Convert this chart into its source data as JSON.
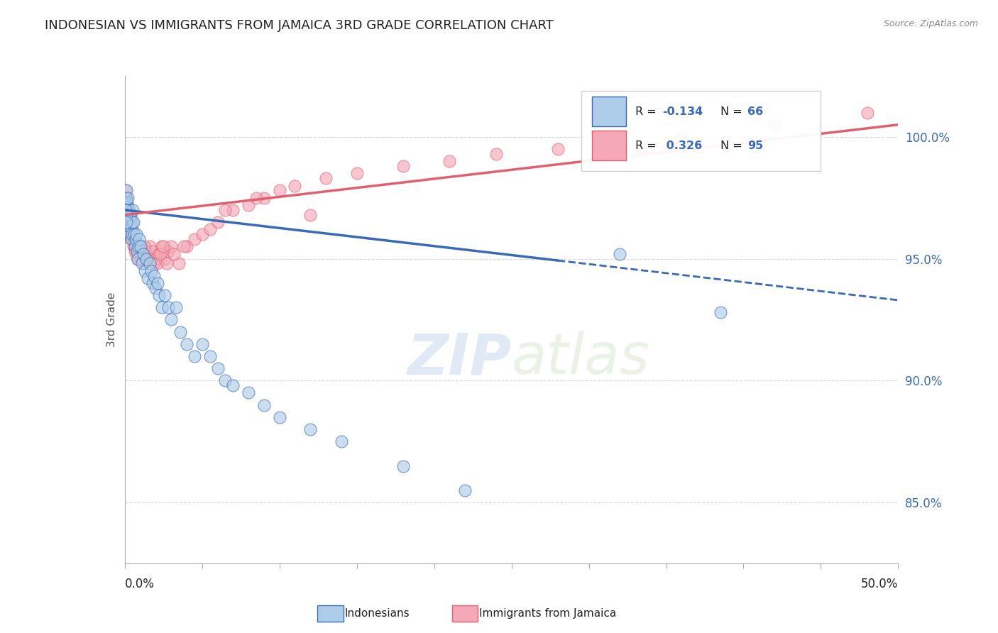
{
  "title": "INDONESIAN VS IMMIGRANTS FROM JAMAICA 3RD GRADE CORRELATION CHART",
  "source": "Source: ZipAtlas.com",
  "ylabel": "3rd Grade",
  "xlim": [
    0.0,
    50.0
  ],
  "ylim": [
    82.5,
    102.5
  ],
  "yticks": [
    85.0,
    90.0,
    95.0,
    100.0
  ],
  "ytick_labels": [
    "85.0%",
    "90.0%",
    "95.0%",
    "100.0%"
  ],
  "watermark": "ZIPatlas",
  "blue_scatter_color": "#aecde8",
  "pink_scatter_color": "#f4a8b8",
  "blue_line_color": "#3a6ab5",
  "pink_line_color": "#e06070",
  "grid_color": "#cccccc",
  "background_color": "#ffffff",
  "blue_line_x0": 0.0,
  "blue_line_y0": 97.0,
  "blue_line_x1": 50.0,
  "blue_line_y1": 93.3,
  "blue_solid_end_x": 28.0,
  "pink_line_x0": 0.0,
  "pink_line_y0": 96.8,
  "pink_line_x1": 50.0,
  "pink_line_y1": 100.5,
  "indonesian_x": [
    0.05,
    0.08,
    0.1,
    0.12,
    0.13,
    0.15,
    0.17,
    0.2,
    0.22,
    0.25,
    0.28,
    0.3,
    0.32,
    0.35,
    0.38,
    0.4,
    0.42,
    0.45,
    0.48,
    0.5,
    0.55,
    0.6,
    0.65,
    0.7,
    0.75,
    0.8,
    0.85,
    0.9,
    0.95,
    1.0,
    1.1,
    1.2,
    1.3,
    1.4,
    1.5,
    1.6,
    1.7,
    1.8,
    1.9,
    2.0,
    2.1,
    2.2,
    2.4,
    2.6,
    2.8,
    3.0,
    3.3,
    3.6,
    4.0,
    4.5,
    5.0,
    5.5,
    6.0,
    6.5,
    7.0,
    8.0,
    9.0,
    10.0,
    12.0,
    14.0,
    18.0,
    22.0,
    32.0,
    38.5,
    0.06,
    0.09,
    0.11
  ],
  "indonesian_y": [
    97.5,
    97.2,
    97.8,
    97.0,
    97.3,
    96.8,
    97.1,
    97.5,
    96.5,
    96.8,
    97.0,
    96.2,
    96.5,
    96.0,
    96.8,
    96.3,
    95.8,
    96.5,
    96.0,
    97.0,
    96.5,
    96.0,
    95.5,
    95.8,
    96.0,
    95.3,
    95.0,
    95.5,
    95.8,
    95.5,
    94.8,
    95.2,
    94.5,
    95.0,
    94.2,
    94.8,
    94.5,
    94.0,
    94.3,
    93.8,
    94.0,
    93.5,
    93.0,
    93.5,
    93.0,
    92.5,
    93.0,
    92.0,
    91.5,
    91.0,
    91.5,
    91.0,
    90.5,
    90.0,
    89.8,
    89.5,
    89.0,
    88.5,
    88.0,
    87.5,
    86.5,
    85.5,
    95.2,
    92.8,
    97.0,
    96.8,
    96.5
  ],
  "jamaica_x": [
    0.03,
    0.05,
    0.07,
    0.08,
    0.1,
    0.12,
    0.14,
    0.15,
    0.17,
    0.18,
    0.2,
    0.22,
    0.24,
    0.25,
    0.27,
    0.28,
    0.3,
    0.32,
    0.35,
    0.38,
    0.4,
    0.42,
    0.45,
    0.48,
    0.5,
    0.55,
    0.6,
    0.65,
    0.7,
    0.75,
    0.8,
    0.85,
    0.9,
    0.95,
    1.0,
    1.1,
    1.2,
    1.3,
    1.4,
    1.5,
    1.6,
    1.7,
    1.8,
    1.9,
    2.0,
    2.2,
    2.4,
    2.6,
    2.8,
    3.0,
    3.5,
    4.0,
    4.5,
    5.0,
    5.5,
    6.0,
    7.0,
    8.0,
    9.0,
    10.0,
    11.0,
    13.0,
    15.0,
    18.0,
    21.0,
    24.0,
    28.0,
    32.0,
    36.0,
    42.0,
    48.0,
    0.06,
    0.09,
    0.11,
    0.13,
    0.16,
    0.19,
    0.21,
    0.23,
    0.26,
    0.29,
    0.33,
    0.36,
    1.05,
    1.15,
    1.25,
    2.1,
    2.3,
    2.5,
    2.7,
    3.2,
    3.8,
    6.5,
    8.5,
    12.0
  ],
  "jamaica_y": [
    97.3,
    97.5,
    97.8,
    97.0,
    97.2,
    97.5,
    96.8,
    97.0,
    96.5,
    97.0,
    96.8,
    96.5,
    97.0,
    96.3,
    96.7,
    96.5,
    96.0,
    96.5,
    96.2,
    96.5,
    96.0,
    95.8,
    96.2,
    95.8,
    96.0,
    95.5,
    95.8,
    95.3,
    95.5,
    95.2,
    95.5,
    95.0,
    95.3,
    95.5,
    95.0,
    95.2,
    94.8,
    95.0,
    95.3,
    95.0,
    95.5,
    95.0,
    95.3,
    94.8,
    95.0,
    95.2,
    95.5,
    95.0,
    95.3,
    95.5,
    94.8,
    95.5,
    95.8,
    96.0,
    96.2,
    96.5,
    97.0,
    97.2,
    97.5,
    97.8,
    98.0,
    98.3,
    98.5,
    98.8,
    99.0,
    99.3,
    99.5,
    99.8,
    100.0,
    100.5,
    101.0,
    97.5,
    97.3,
    97.0,
    96.8,
    97.2,
    96.5,
    97.0,
    96.8,
    96.5,
    96.8,
    96.2,
    96.5,
    95.2,
    95.0,
    95.5,
    94.8,
    95.2,
    95.5,
    94.8,
    95.2,
    95.5,
    97.0,
    97.5,
    96.8
  ]
}
